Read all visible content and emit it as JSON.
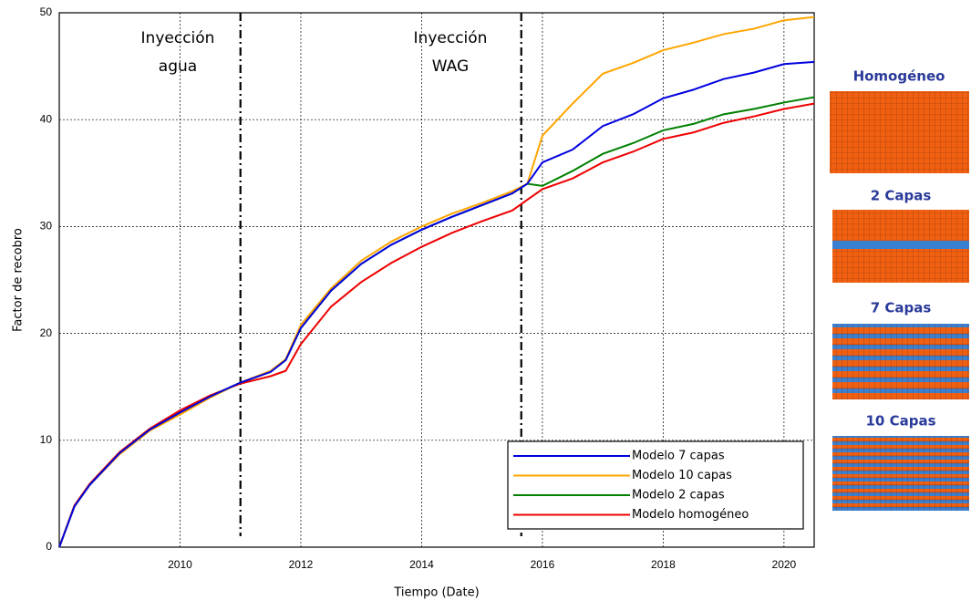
{
  "chart_data": {
    "type": "line",
    "xlabel": "Tiempo (Date)",
    "ylabel": "Factor de recobro",
    "x": [
      2008,
      2008.25,
      2008.5,
      2009,
      2009.5,
      2010,
      2010.5,
      2011,
      2011.5,
      2011.75,
      2012,
      2012.5,
      2013,
      2013.5,
      2014,
      2014.5,
      2015,
      2015.5,
      2015.75,
      2016,
      2016.5,
      2017,
      2017.5,
      2018,
      2018.5,
      2019,
      2019.5,
      2020,
      2020.5
    ],
    "series": [
      {
        "name": "Modelo 7 capas",
        "color": "#0000e0",
        "values": [
          0,
          3.8,
          5.8,
          8.8,
          11,
          12.6,
          14.1,
          15.4,
          16.4,
          17.5,
          20.5,
          24,
          26.5,
          28.3,
          29.7,
          30.9,
          32,
          33.1,
          34,
          36,
          37.2,
          39.4,
          40.5,
          42,
          42.8,
          43.8,
          44.4,
          45.2,
          45.4
        ]
      },
      {
        "name": "Modelo 10 capas",
        "color": "#ffa500",
        "values": [
          0,
          3.8,
          5.8,
          8.7,
          10.9,
          12.4,
          14,
          15.4,
          16.5,
          17.6,
          20.8,
          24.2,
          26.8,
          28.6,
          30,
          31.2,
          32.2,
          33.3,
          34,
          38.5,
          41.5,
          44.3,
          45.3,
          46.5,
          47.2,
          48,
          48.5,
          49.3,
          49.6
        ]
      },
      {
        "name": "Modelo 2 capas",
        "color": "#008000",
        "values": [
          0,
          3.8,
          5.8,
          8.8,
          11,
          12.6,
          14.1,
          15.4,
          16.4,
          17.5,
          20.5,
          24,
          26.5,
          28.3,
          29.7,
          30.9,
          32,
          33.1,
          34,
          33.8,
          35.2,
          36.8,
          37.8,
          39,
          39.6,
          40.5,
          41,
          41.6,
          42.1
        ]
      },
      {
        "name": "Modelo homogéneo",
        "color": "#ee0000",
        "values": [
          0,
          3.9,
          5.9,
          8.9,
          11.1,
          12.8,
          14.2,
          15.3,
          16,
          16.5,
          19,
          22.5,
          24.8,
          26.6,
          28.1,
          29.4,
          30.5,
          31.5,
          32.5,
          33.5,
          34.5,
          36,
          37,
          38.2,
          38.8,
          39.7,
          40.3,
          41,
          41.5
        ]
      }
    ],
    "xlim": [
      2008,
      2020.5
    ],
    "xticks": [
      2010,
      2012,
      2014,
      2016,
      2018,
      2020
    ],
    "ylim": [
      0,
      50
    ],
    "yticks": [
      0,
      10,
      20,
      30,
      40,
      50
    ],
    "grid": true,
    "legend": "lower right",
    "vlines": [
      2011,
      2015.65
    ],
    "annotations": [
      [
        "Inyección",
        "agua"
      ],
      [
        "Inyección",
        "WAG"
      ]
    ]
  },
  "panels": [
    "Homogéneo",
    "2 Capas",
    "7 Capas",
    "10 Capas"
  ]
}
